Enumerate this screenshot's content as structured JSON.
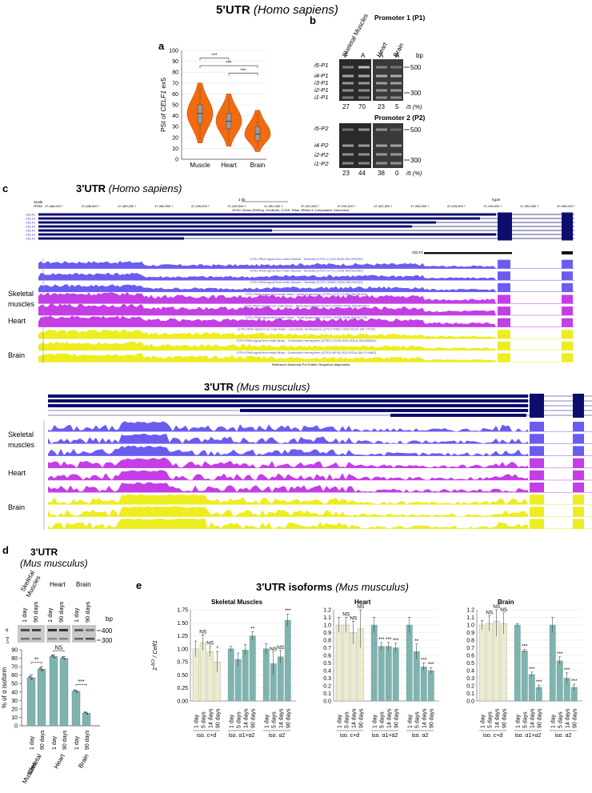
{
  "titles": {
    "utr5": "5'UTR",
    "utr5_species": "Homo sapiens",
    "utr3_human": "3'UTR",
    "utr3_human_species": "Homo sapiens",
    "utr3_mouse": "3'UTR",
    "utr3_mouse_species": "Mus musculus",
    "panel_d": "3'UTR",
    "panel_d_species": "(Mus musculus)",
    "panel_e": "3'UTR isoforms",
    "panel_e_species": "Mus musculus"
  },
  "panel_labels": {
    "a": "a",
    "b": "b",
    "c": "c",
    "d": "d",
    "e": "e"
  },
  "panel_a": {
    "chart_data": {
      "type": "violin",
      "ylabel_prefix": "PSI of ",
      "ylabel_gene": "CELF1",
      "ylabel_suffix": " ex5",
      "categories": [
        "Muscle",
        "Heart",
        "Brain"
      ],
      "medians": [
        42,
        35,
        23
      ],
      "q1": [
        33,
        28,
        17
      ],
      "q3": [
        50,
        42,
        30
      ],
      "whisker_low": [
        15,
        12,
        7
      ],
      "whisker_high": [
        70,
        60,
        45
      ],
      "ylim": [
        0,
        100
      ],
      "yticks": [
        0,
        10,
        20,
        30,
        40,
        50,
        60,
        70,
        80,
        90,
        100
      ],
      "significance": [
        {
          "pair": [
            "Muscle",
            "Heart"
          ],
          "label": "***"
        },
        {
          "pair": [
            "Muscle",
            "Brain"
          ],
          "label": "***"
        },
        {
          "pair": [
            "Heart",
            "Brain"
          ],
          "label": "***"
        }
      ],
      "colors": {
        "fill": "#f26b0f",
        "stroke": "#c84a00",
        "box": "#9a9a9a"
      }
    }
  },
  "panel_b": {
    "p1_title": "Promoter 1 (P1)",
    "p2_title": "Promoter 2 (P2)",
    "lane_groups": [
      "Skeletal Muscles",
      "Heart",
      "Brain"
    ],
    "p1_lane_labels": [
      "F",
      "A",
      "A",
      "A"
    ],
    "bp": "bp",
    "marker_500": "500",
    "marker_300": "300",
    "p1_bands": [
      "i5-P1",
      "i4-P1",
      "i3-P1",
      "i2-P1",
      "i1-P1"
    ],
    "p2_bands": [
      "i5-P2",
      "i4-P2",
      "i2-P2",
      "i1-P2"
    ],
    "p1_percent": [
      "27",
      "70",
      "23",
      "5"
    ],
    "p2_percent": [
      "23",
      "44",
      "38",
      "0"
    ],
    "percent_label": "i5 (%)"
  },
  "panel_c": {
    "scale_label": "Scale",
    "chr_label": "chr11:",
    "scale_bar": "2 kb",
    "genome": "hg19",
    "coords": [
      "47,488,000",
      "47,488,500",
      "47,489,000",
      "47,489,500",
      "47,490,000",
      "47,490,500",
      "47,491,000",
      "47,491,500",
      "47,492,000",
      "47,492,500",
      "47,493,000",
      "47,493,500",
      "47,494,000",
      "47,494,500",
      "47,495,000"
    ],
    "ucsc_label": "UCSC Genes (RefSeq, GenBank, CCDS, Rfam, tRNAs & Comparative Genomics)",
    "gene_rows": [
      "CELF1",
      "CELF1",
      "CELF1",
      "CELF1",
      "CELF1",
      "CELF1",
      "CELF1"
    ],
    "celf1_label": "CELF1",
    "track_labels": [
      "GTEx RNA signal from male Muscle - Skeletal (GTEX-12126-0526-SM-5PNW4)",
      "GTEx RNA signal from male Muscle - Skeletal (GTEX-11TT1-2326-SM-5GU6N)",
      "GTEx RNA signal from male Muscle - Skeletal (GTEX-1IN5O-2326-SM-5HL5O)",
      "GTEx RNA signal from male Heart - Atrial Appendage (GTEX-11TT1-1426-SM-5EGIA)",
      "GTEx RNA signal from male Heart - Atrial Appendage (GTEX-12WSN-0226-SM-5DU01)",
      "GTEx RNA signal from male Heart - Atrial Appendage (GTEX-13309-0326-SM-5KTZ8)",
      "GTEx RNA signal from male Brain - Cerebellar Hemisphere (GTEX-R53C-0011-R11A-SM-2TC6I)",
      "GTEx RNA signal from male Brain - Cerebellar Hemisphere (GTEX-12126-0011-R11A-SM-5BQ5X)",
      "GTEx RNA signal from male Brain - Cerebellar Hemisphere (GTEX-NPJ8-0011-R11A-SM-2YUMG)"
    ],
    "footer": "Reference  Assembly  Pct  Pattern  Sequence  Alignments",
    "tissues": [
      "Skeletal muscles",
      "Heart",
      "Brain"
    ],
    "tissues_lines": [
      [
        "Skeletal",
        "muscles"
      ],
      [
        "Heart"
      ],
      [
        "Brain"
      ]
    ],
    "colors": {
      "muscle": "#6b5cf0",
      "heart": "#c43ee6",
      "brain": "#eded1f",
      "gene": "#0d0d6e"
    }
  },
  "panel_d": {
    "lane_groups": [
      [
        "Skeletal",
        "Muscles"
      ],
      [
        "Heart"
      ],
      [
        "Brain"
      ]
    ],
    "lane_labels": [
      "1 day",
      "90 days",
      "1 day",
      "90 days",
      "1 day",
      "90 days"
    ],
    "bp": "bp",
    "marker_400": "400",
    "marker_300": "300",
    "isoform_marks": [
      "α",
      "c+d"
    ],
    "chart_data": {
      "type": "bar",
      "ylabel": "% of α isoform",
      "categories": [
        "1 day",
        "90 days",
        "1 day",
        "90 days",
        "1 day",
        "90 days"
      ],
      "values": [
        57,
        67,
        82,
        80,
        41,
        15
      ],
      "errors": [
        3,
        3,
        2,
        2,
        1,
        1
      ],
      "ylim": [
        0,
        90
      ],
      "yticks": [
        0,
        10,
        20,
        30,
        40,
        50,
        60,
        70,
        80,
        90
      ],
      "groups": [
        [
          "Skeletal",
          "Muscles"
        ],
        [
          "Heart"
        ],
        [
          "Brain"
        ]
      ],
      "significance": [
        "**",
        "NS",
        "***"
      ],
      "color": "#7fb3b0"
    }
  },
  "panel_e": {
    "ylabel_base": "2",
    "ylabel_exp": "-ΔCt",
    "ylabel_gene": " / Celf1",
    "chart_data": [
      {
        "type": "bar",
        "title": "Skeletal Muscles",
        "ylim": [
          0,
          1.75
        ],
        "yticks": [
          0,
          0.25,
          0.5,
          0.75,
          1.0,
          1.25,
          1.5,
          1.75
        ],
        "time_points": [
          "1 day",
          "5 days",
          "14 days",
          "90 days"
        ],
        "groups": [
          {
            "name": "iso. c+d",
            "values": [
              1.0,
              1.12,
              0.95,
              0.75
            ],
            "errors": [
              0.15,
              0.15,
              0.1,
              0.2
            ],
            "sig": [
              "",
              "NS",
              "NS",
              "*"
            ]
          },
          {
            "name": "iso. α1+α2",
            "values": [
              1.0,
              0.8,
              0.98,
              1.25
            ],
            "errors": [
              0.05,
              0.12,
              0.1,
              0.08
            ],
            "sig": [
              "",
              "",
              "",
              "**"
            ]
          },
          {
            "name": "iso. α2",
            "values": [
              1.0,
              0.72,
              0.85,
              1.55
            ],
            "errors": [
              0.1,
              0.22,
              0.12,
              0.12
            ],
            "sig": [
              "",
              "NS",
              "NS",
              "***"
            ]
          }
        ]
      },
      {
        "type": "bar",
        "title": "Heart",
        "ylim": [
          0,
          1.2
        ],
        "yticks": [
          0,
          0.1,
          0.2,
          0.3,
          0.4,
          0.5,
          0.6,
          0.7,
          0.8,
          0.9,
          1.0,
          1.1,
          1.2
        ],
        "time_points": [
          "1 day",
          "5 days",
          "14 days",
          "90 days"
        ],
        "groups": [
          {
            "name": "iso. c+d",
            "values": [
              1.0,
              1.0,
              0.9,
              0.95
            ],
            "errors": [
              0.1,
              0.1,
              0.15,
              0.25
            ],
            "sig": [
              "",
              "NS",
              "NS",
              "NS"
            ]
          },
          {
            "name": "iso. α1+α2",
            "values": [
              1.0,
              0.72,
              0.72,
              0.7
            ],
            "errors": [
              0.1,
              0.05,
              0.05,
              0.06
            ],
            "sig": [
              "",
              "***",
              "***",
              "***"
            ]
          },
          {
            "name": "iso. α2",
            "values": [
              1.0,
              0.65,
              0.45,
              0.4
            ],
            "errors": [
              0.1,
              0.1,
              0.05,
              0.04
            ],
            "sig": [
              "",
              "**",
              "***",
              "***"
            ]
          }
        ]
      },
      {
        "type": "bar",
        "title": "Brain",
        "ylim": [
          0,
          1.2
        ],
        "yticks": [
          0,
          0.1,
          0.2,
          0.3,
          0.4,
          0.5,
          0.6,
          0.7,
          0.8,
          0.9,
          1.0,
          1.1,
          1.2
        ],
        "time_points": [
          "1 day",
          "5 days",
          "14 days",
          "90 days"
        ],
        "groups": [
          {
            "name": "iso. c+d",
            "values": [
              1.0,
              1.02,
              1.05,
              1.02
            ],
            "errors": [
              0.06,
              0.1,
              0.2,
              0.14
            ],
            "sig": [
              "",
              "NS",
              "NS",
              "NS"
            ]
          },
          {
            "name": "iso. α1+α2",
            "values": [
              1.0,
              0.66,
              0.35,
              0.18
            ],
            "errors": [
              0.02,
              0.02,
              0.03,
              0.03
            ],
            "sig": [
              "",
              "***",
              "***",
              "***"
            ]
          },
          {
            "name": "iso. α2",
            "values": [
              1.0,
              0.53,
              0.3,
              0.18
            ],
            "errors": [
              0.1,
              0.05,
              0.07,
              0.04
            ],
            "sig": [
              "",
              "***",
              "***",
              "***"
            ]
          }
        ]
      }
    ],
    "colors": {
      "control": "#eeeacc",
      "bar": "#7fb3b0",
      "edge": "#6c8f8c"
    }
  }
}
